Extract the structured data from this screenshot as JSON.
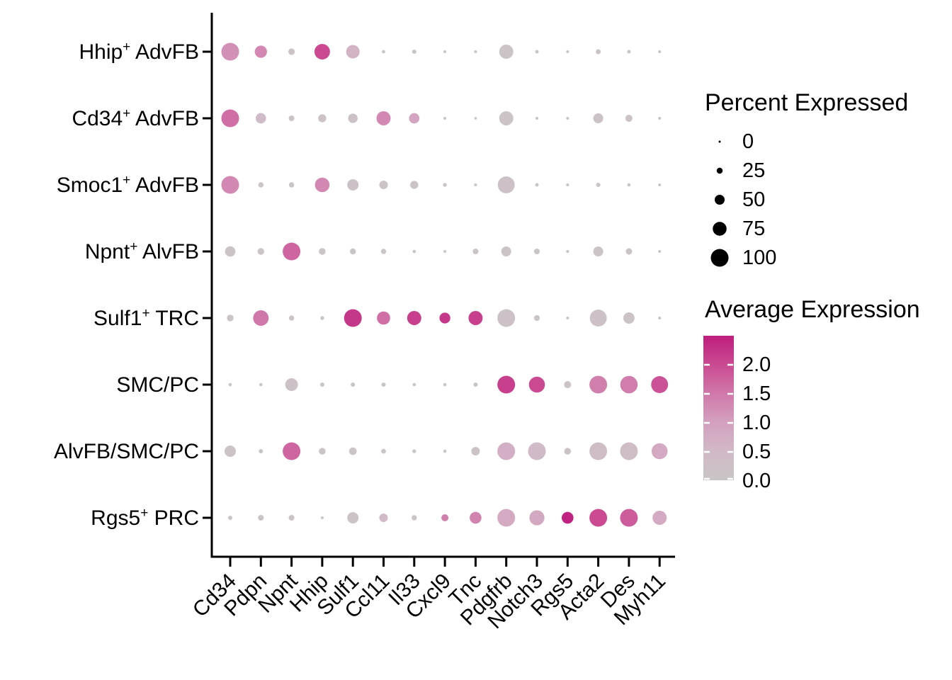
{
  "figure": {
    "background": "#FFFFFF",
    "axis_color": "#000000"
  },
  "chart_data": {
    "type": "scatter",
    "variant": "dot-plot (bubble matrix: dot size = percent of cells expressing, dot color = average expression)",
    "title": "",
    "x_labels": [
      "Cd34",
      "Pdpn",
      "Npnt",
      "Hhip",
      "Sulf1",
      "Ccl11",
      "Il33",
      "Cxcl9",
      "Tnc",
      "Pdgfrb",
      "Notch3",
      "Rgs5",
      "Acta2",
      "Des",
      "Myh11"
    ],
    "y_labels": [
      "Hhip⁺ AdvFB",
      "Cd34⁺ AdvFB",
      "Smoc1⁺ AdvFB",
      "Npnt⁺ AlvFB",
      "Sulf1⁺ TRC",
      "SMC/PC",
      "AlvFB/SMC/PC",
      "Rgs5⁺ PRC"
    ],
    "series": [
      {
        "name": "Hhip⁺ AdvFB",
        "percent_expressed": [
          100,
          65,
          28,
          86,
          73,
          8,
          14,
          5,
          5,
          77,
          9,
          5,
          18,
          9,
          5
        ],
        "avg_expression": [
          1.2,
          1.3,
          0.1,
          2.0,
          0.6,
          0.0,
          0.0,
          0.0,
          0.0,
          0.1,
          0.0,
          0.0,
          0.05,
          0.0,
          0.0
        ]
      },
      {
        "name": "Cd34⁺ AdvFB",
        "percent_expressed": [
          100,
          53,
          23,
          38,
          47,
          77,
          53,
          5,
          3,
          77,
          5,
          5,
          50,
          32,
          5
        ],
        "avg_expression": [
          1.6,
          0.4,
          0.05,
          0.1,
          0.15,
          1.3,
          0.9,
          0.0,
          0.0,
          0.1,
          0.0,
          0.0,
          0.15,
          0.1,
          0.0
        ]
      },
      {
        "name": "Smoc1⁺ AdvFB",
        "percent_expressed": [
          100,
          20,
          20,
          80,
          59,
          41,
          38,
          11,
          5,
          95,
          9,
          5,
          14,
          7,
          5
        ],
        "avg_expression": [
          1.3,
          0.05,
          0.05,
          1.3,
          0.15,
          0.1,
          0.1,
          0.0,
          0.0,
          0.15,
          0.0,
          0.0,
          0.0,
          0.0,
          0.0
        ]
      },
      {
        "name": "Npnt⁺ AlvFB",
        "percent_expressed": [
          53,
          29,
          100,
          29,
          25,
          20,
          7,
          5,
          23,
          50,
          23,
          5,
          50,
          27,
          5
        ],
        "avg_expression": [
          0.1,
          0.05,
          1.7,
          0.05,
          0.05,
          0.05,
          0.0,
          0.0,
          0.05,
          0.1,
          0.05,
          0.0,
          0.1,
          0.05,
          0.0
        ]
      },
      {
        "name": "Sulf1⁺ TRC",
        "percent_expressed": [
          29,
          86,
          20,
          11,
          100,
          71,
          77,
          56,
          77,
          100,
          23,
          5,
          95,
          59,
          5
        ],
        "avg_expression": [
          0.05,
          1.5,
          0.05,
          0.0,
          2.2,
          1.6,
          2.1,
          2.2,
          2.1,
          0.15,
          0.05,
          0.0,
          0.15,
          0.1,
          0.0
        ]
      },
      {
        "name": "SMC/PC",
        "percent_expressed": [
          7,
          7,
          68,
          14,
          14,
          14,
          7,
          7,
          14,
          100,
          89,
          32,
          100,
          98,
          95
        ],
        "avg_expression": [
          0.0,
          0.0,
          0.15,
          0.0,
          0.0,
          0.0,
          0.0,
          0.0,
          0.0,
          2.1,
          2.0,
          0.1,
          1.4,
          1.45,
          1.9
        ]
      },
      {
        "name": "AlvFB/SMC/PC",
        "percent_expressed": [
          59,
          14,
          100,
          29,
          35,
          17,
          11,
          7,
          41,
          100,
          100,
          29,
          100,
          100,
          89
        ],
        "avg_expression": [
          0.1,
          0.0,
          1.7,
          0.05,
          0.1,
          0.0,
          0.0,
          0.0,
          0.1,
          0.7,
          0.45,
          0.1,
          0.35,
          0.35,
          0.8
        ]
      },
      {
        "name": "Rgs5⁺ PRC",
        "percent_expressed": [
          14,
          23,
          23,
          5,
          59,
          41,
          20,
          32,
          62,
          100,
          83,
          62,
          100,
          100,
          77
        ],
        "avg_expression": [
          0.0,
          0.05,
          0.05,
          0.0,
          0.1,
          0.45,
          0.05,
          1.4,
          1.35,
          0.8,
          0.85,
          2.45,
          2.0,
          1.8,
          0.8
        ]
      }
    ],
    "legend_percent": {
      "title": "Percent Expressed",
      "values": [
        "0",
        "25",
        "50",
        "75",
        "100"
      ],
      "dot_color": "#000000"
    },
    "legend_avg": {
      "title": "Average Expression",
      "tick_labels": [
        "2.0",
        "1.5",
        "1.0",
        "0.5",
        "0.0"
      ],
      "domain": [
        0.0,
        2.49
      ]
    },
    "color_scale": {
      "description": "gray (low) to magenta (high)",
      "stops": [
        {
          "v": 0.0,
          "c": "#C9C5C5"
        },
        {
          "v": 0.5,
          "c": "#D1B9C7"
        },
        {
          "v": 1.0,
          "c": "#D4A0BF"
        },
        {
          "v": 1.5,
          "c": "#D078AA"
        },
        {
          "v": 2.0,
          "c": "#CA4991"
        },
        {
          "v": 2.5,
          "c": "#BE1E7E"
        }
      ]
    },
    "layout": {
      "grid": false,
      "legend_position": "right",
      "x_tick_rotation_deg": 45
    }
  }
}
